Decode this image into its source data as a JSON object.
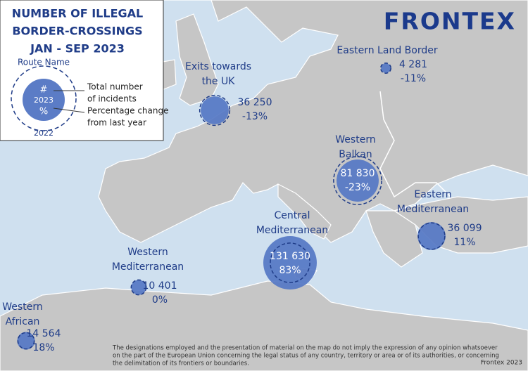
{
  "legend": {
    "title": [
      "NUMBER OF ILLEGAL",
      "BORDER-CROSSINGS",
      "JAN - SEP 2023"
    ],
    "route_name": "Route Name",
    "symbol": "#",
    "year_current": "2023",
    "percent": "%",
    "year_previous": "2022",
    "labels": [
      "Total number",
      "of incidents",
      "Percentage change",
      "from last year"
    ]
  },
  "logo": "FRONTEX",
  "routes": [
    {
      "name": [
        "Exits towards",
        "the UK"
      ],
      "count": 36250,
      "count_label": "36 250",
      "change": -13,
      "change_label": "-13%"
    },
    {
      "name": [
        "Eastern Land Border"
      ],
      "count": 4281,
      "count_label": "4 281",
      "change": -11,
      "change_label": "-11%"
    },
    {
      "name": [
        "Western",
        "Balkan"
      ],
      "count": 81830,
      "count_label": "81 830",
      "change": -23,
      "change_label": "-23%"
    },
    {
      "name": [
        "Eastern",
        "Mediterranean"
      ],
      "count": 36099,
      "count_label": "36 099",
      "change": 11,
      "change_label": "11%"
    },
    {
      "name": [
        "Central",
        "Mediterranean"
      ],
      "count": 131630,
      "count_label": "131 630",
      "change": 83,
      "change_label": "83%"
    },
    {
      "name": [
        "Western",
        "Mediterranean"
      ],
      "count": 10401,
      "count_label": "10 401",
      "change": 0,
      "change_label": "0%"
    },
    {
      "name": [
        "Western",
        "African"
      ],
      "count": 14564,
      "count_label": "14 564",
      "change": 18,
      "change_label": "18%"
    }
  ],
  "disclaimer": [
    "The designations employed and the presentation of material on the map do not imply the expression of any opinion whatsoever",
    "on the part of the European Union concerning the legal status of any country, territory or area or of its authorities, or concerning",
    "the delimitation of its frontiers or boundaries."
  ],
  "credit": "Frontex 2023"
}
